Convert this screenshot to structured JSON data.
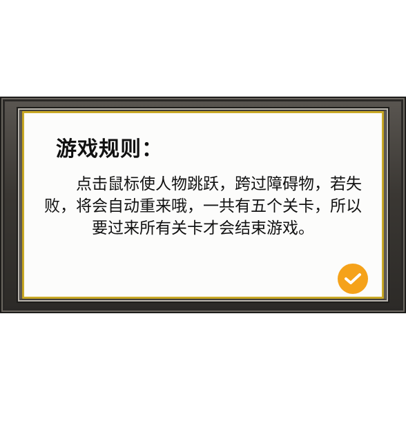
{
  "dialog": {
    "title": "游戏规则：",
    "body": "点击鼠标使人物跳跃，跨过障碍物，若失败，将会自动重来哦，一共有五个关卡，所以要过来所有关卡才会结束游戏。",
    "confirm_icon": "check-icon"
  },
  "colors": {
    "frame_dark": "#3a3733",
    "frame_gold": "#c9a927",
    "panel": "#fcfcfb",
    "confirm_button": "#f5a21a",
    "text": "#111111"
  }
}
